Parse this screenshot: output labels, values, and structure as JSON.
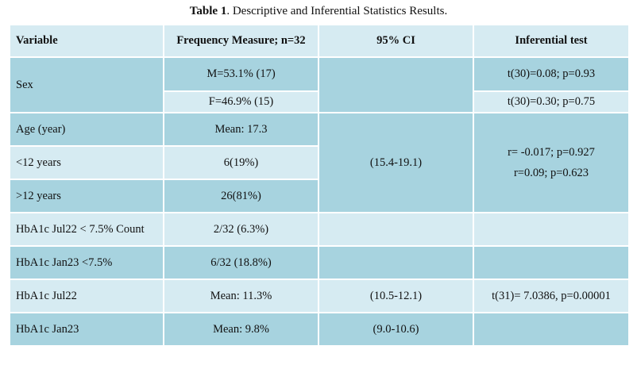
{
  "caption": {
    "label": "Table 1",
    "text": ". Descriptive and Inferential Statistics Results."
  },
  "table": {
    "headers": {
      "variable": "Variable",
      "frequency": "Frequency Measure; n=32",
      "ci": "95% CI",
      "test": "Inferential test"
    },
    "sex": {
      "label": "Sex",
      "male": "M=53.1% (17)",
      "female": "F=46.9% (15)",
      "male_test": "t(30)=0.08; p=0.93",
      "female_test": "t(30)=0.30; p=0.75"
    },
    "age": {
      "label": "Age (year)",
      "mean": "Mean: 17.3",
      "ci": "(15.4-19.1)",
      "test_1": "r= -0.017; p=0.927",
      "test_2": "r=0.09; p=0.623"
    },
    "under12": {
      "label": "<12 years",
      "value": "6(19%)"
    },
    "over12": {
      "label": ">12 years",
      "value": "26(81%)"
    },
    "hba1c_jul22_count": {
      "label": "HbA1c Jul22 < 7.5% Count",
      "value": "2/32 (6.3%)"
    },
    "hba1c_jan23_count": {
      "label": "HbA1c Jan23 <7.5%",
      "value": "6/32 (18.8%)"
    },
    "hba1c_jul22": {
      "label": "HbA1c Jul22",
      "value": "Mean: 11.3%",
      "ci": "(10.5-12.1)",
      "test": "t(31)= 7.0386, p=0.00001"
    },
    "hba1c_jan23": {
      "label": "HbA1c Jan23",
      "value": "Mean: 9.8%",
      "ci": "(9.0-10.6)",
      "test": ""
    }
  },
  "colors": {
    "dark_cell": "#a7d3df",
    "light_cell": "#d6ebf2",
    "border": "#ffffff"
  }
}
